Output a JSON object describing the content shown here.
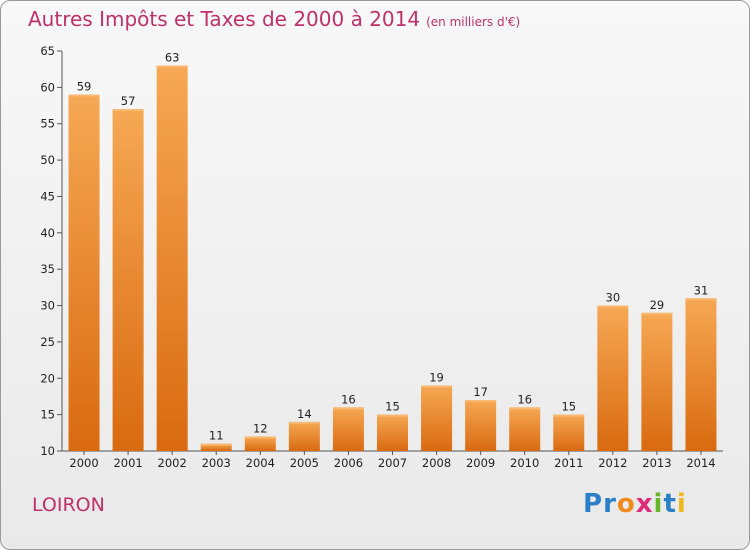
{
  "title": "Autres Impôts et Taxes de 2000 à 2014",
  "unit": "(en milliers d'€)",
  "commune": "LOIRON",
  "logo": {
    "text": "Proxiti",
    "letters": [
      {
        "ch": "P",
        "color": "#2a7fc8"
      },
      {
        "ch": "r",
        "color": "#2a7fc8"
      },
      {
        "ch": "o",
        "color": "#f08a1c"
      },
      {
        "ch": "x",
        "color": "#e02a7a"
      },
      {
        "ch": "i",
        "color": "#6ab42a"
      },
      {
        "ch": "t",
        "color": "#2a7fc8"
      },
      {
        "ch": "i",
        "color": "#f0b81c"
      }
    ]
  },
  "colors": {
    "bar_light": "#f5a650",
    "bar_dark": "#d96c12",
    "title": "#c0306a"
  },
  "chart_data": {
    "type": "bar",
    "title": "Autres Impôts et Taxes de 2000 à 2014",
    "categories": [
      "2000",
      "2001",
      "2002",
      "2003",
      "2004",
      "2005",
      "2006",
      "2007",
      "2008",
      "2009",
      "2010",
      "2011",
      "2012",
      "2013",
      "2014"
    ],
    "values": [
      59,
      57,
      63,
      11,
      12,
      14,
      16,
      15,
      19,
      17,
      16,
      15,
      30,
      29,
      31
    ],
    "ylim": [
      10,
      65
    ],
    "yticks": [
      10,
      15,
      20,
      25,
      30,
      35,
      40,
      45,
      50,
      55,
      60,
      65
    ],
    "grid": false
  }
}
